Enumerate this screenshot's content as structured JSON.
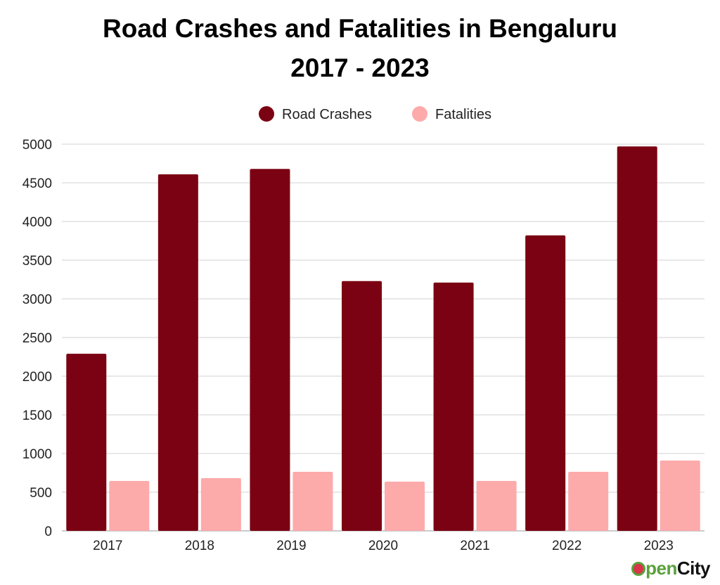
{
  "chart_data": {
    "type": "bar",
    "title": "Road Crashes and Fatalities in Bengaluru",
    "subtitle": "2017 - 2023",
    "xlabel": "",
    "ylabel": "",
    "categories": [
      "2017",
      "2018",
      "2019",
      "2020",
      "2021",
      "2022",
      "2023"
    ],
    "series": [
      {
        "name": "Road Crashes",
        "color": "#7b0212",
        "values": [
          2290,
          4610,
          4680,
          3230,
          3210,
          3820,
          4970
        ]
      },
      {
        "name": "Fatalities",
        "color": "#fdaaab",
        "values": [
          645,
          682,
          764,
          636,
          645,
          764,
          909
        ]
      }
    ],
    "ylim": [
      0,
      5000
    ],
    "yticks": [
      0,
      500,
      1000,
      1500,
      2000,
      2500,
      3000,
      3500,
      4000,
      4500,
      5000
    ],
    "grid": true,
    "legend_position": "top-center"
  },
  "branding": {
    "logo_text_1": "pen",
    "logo_text_2": "City",
    "logo_text": "OpenCity"
  }
}
